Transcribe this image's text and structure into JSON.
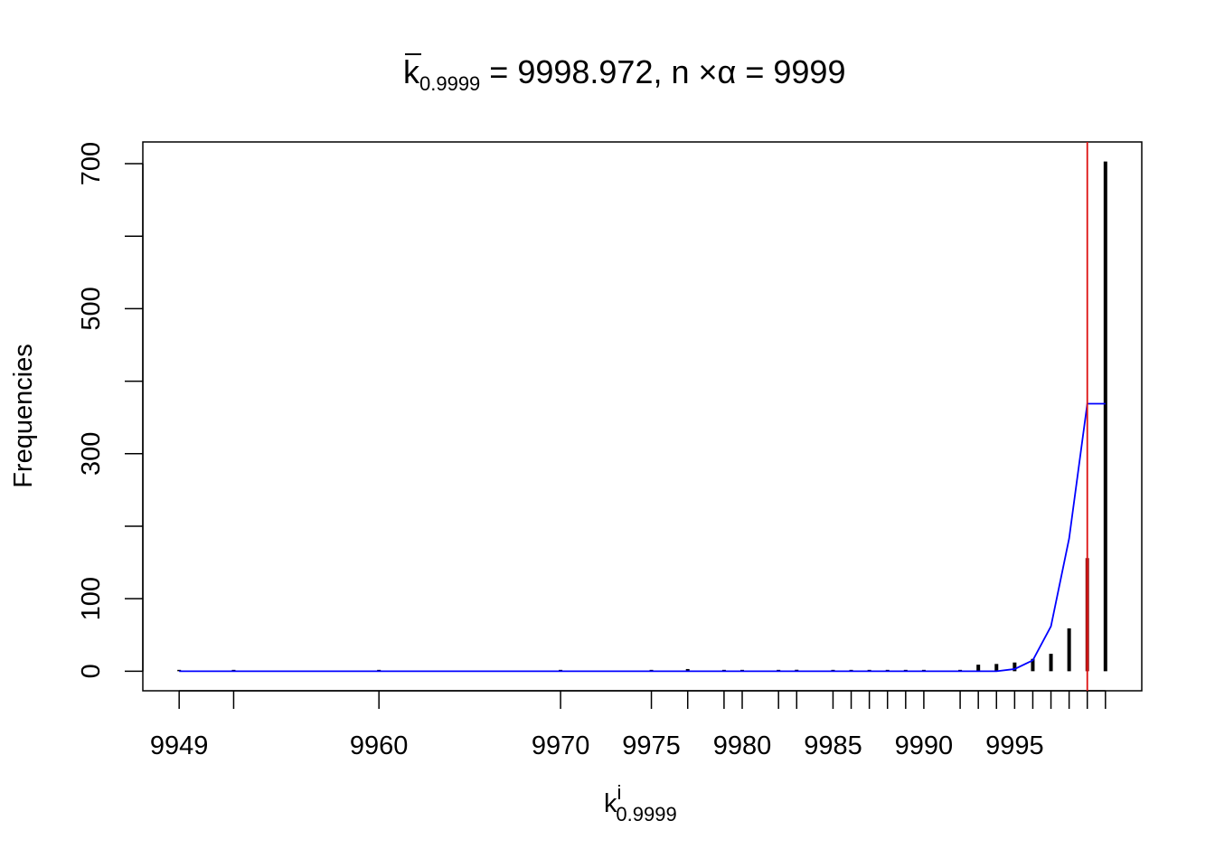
{
  "chart_data": {
    "type": "bar",
    "title": {
      "k_bar": "k",
      "k_subscript": "0.9999",
      "k_value_text": " = 9998.972, n ",
      "times": "×",
      "alpha": "α",
      "n_alpha_value_text": " = 9999"
    },
    "xlabel": {
      "base": "k",
      "superscript": "i",
      "subscript": "0.9999"
    },
    "ylabel": "Frequencies",
    "xlim": [
      9947,
      10002
    ],
    "ylim": [
      -27,
      730
    ],
    "x_ticks": [
      9949,
      9952,
      9960,
      9970,
      9975,
      9977,
      9979,
      9980,
      9982,
      9983,
      9985,
      9986,
      9987,
      9988,
      9989,
      9990,
      9992,
      9993,
      9994,
      9995,
      9996,
      9997,
      9998,
      9999,
      10000
    ],
    "x_tick_labels": [
      {
        "x": 9949,
        "label": "9949"
      },
      {
        "x": 9960,
        "label": "9960"
      },
      {
        "x": 9970,
        "label": "9970"
      },
      {
        "x": 9975,
        "label": "9975"
      },
      {
        "x": 9980,
        "label": "9980"
      },
      {
        "x": 9985,
        "label": "9985"
      },
      {
        "x": 9990,
        "label": "9990"
      },
      {
        "x": 9995,
        "label": "9995"
      }
    ],
    "y_ticks": [
      0,
      100,
      200,
      300,
      400,
      500,
      600,
      700
    ],
    "y_tick_labels": [
      {
        "y": 0,
        "label": "0"
      },
      {
        "y": 100,
        "label": "100"
      },
      {
        "y": 300,
        "label": "300"
      },
      {
        "y": 500,
        "label": "500"
      },
      {
        "y": 700,
        "label": "700"
      }
    ],
    "bars": {
      "x": [
        9949,
        9952,
        9960,
        9970,
        9975,
        9977,
        9979,
        9980,
        9982,
        9983,
        9985,
        9986,
        9987,
        9988,
        9989,
        9990,
        9992,
        9993,
        9994,
        9995,
        9996,
        9997,
        9998,
        9999,
        10000
      ],
      "values": [
        1,
        1,
        1,
        1,
        1,
        3,
        1,
        1,
        1,
        2,
        1,
        1,
        1,
        1,
        1,
        1,
        1,
        9,
        10,
        12,
        17,
        24,
        59,
        156,
        703
      ],
      "color": "#000000"
    },
    "highlight_bar": {
      "x": 9999,
      "value": 156,
      "color": "#8b1a1a"
    },
    "fitted_line": {
      "color": "#0000ff",
      "x": [
        9949,
        9952,
        9960,
        9970,
        9975,
        9977,
        9979,
        9980,
        9982,
        9983,
        9985,
        9986,
        9987,
        9988,
        9989,
        9990,
        9992,
        9993,
        9994,
        9995,
        9996,
        9997,
        9998,
        9999,
        10000
      ],
      "y": [
        0,
        0,
        0,
        0,
        0,
        0,
        0,
        0,
        0,
        0,
        0,
        0,
        0,
        0,
        0,
        0,
        0,
        0,
        0,
        3,
        15,
        62,
        183,
        369,
        369
      ]
    },
    "reference_line": {
      "x": 9999,
      "color": "#dd1111"
    }
  }
}
